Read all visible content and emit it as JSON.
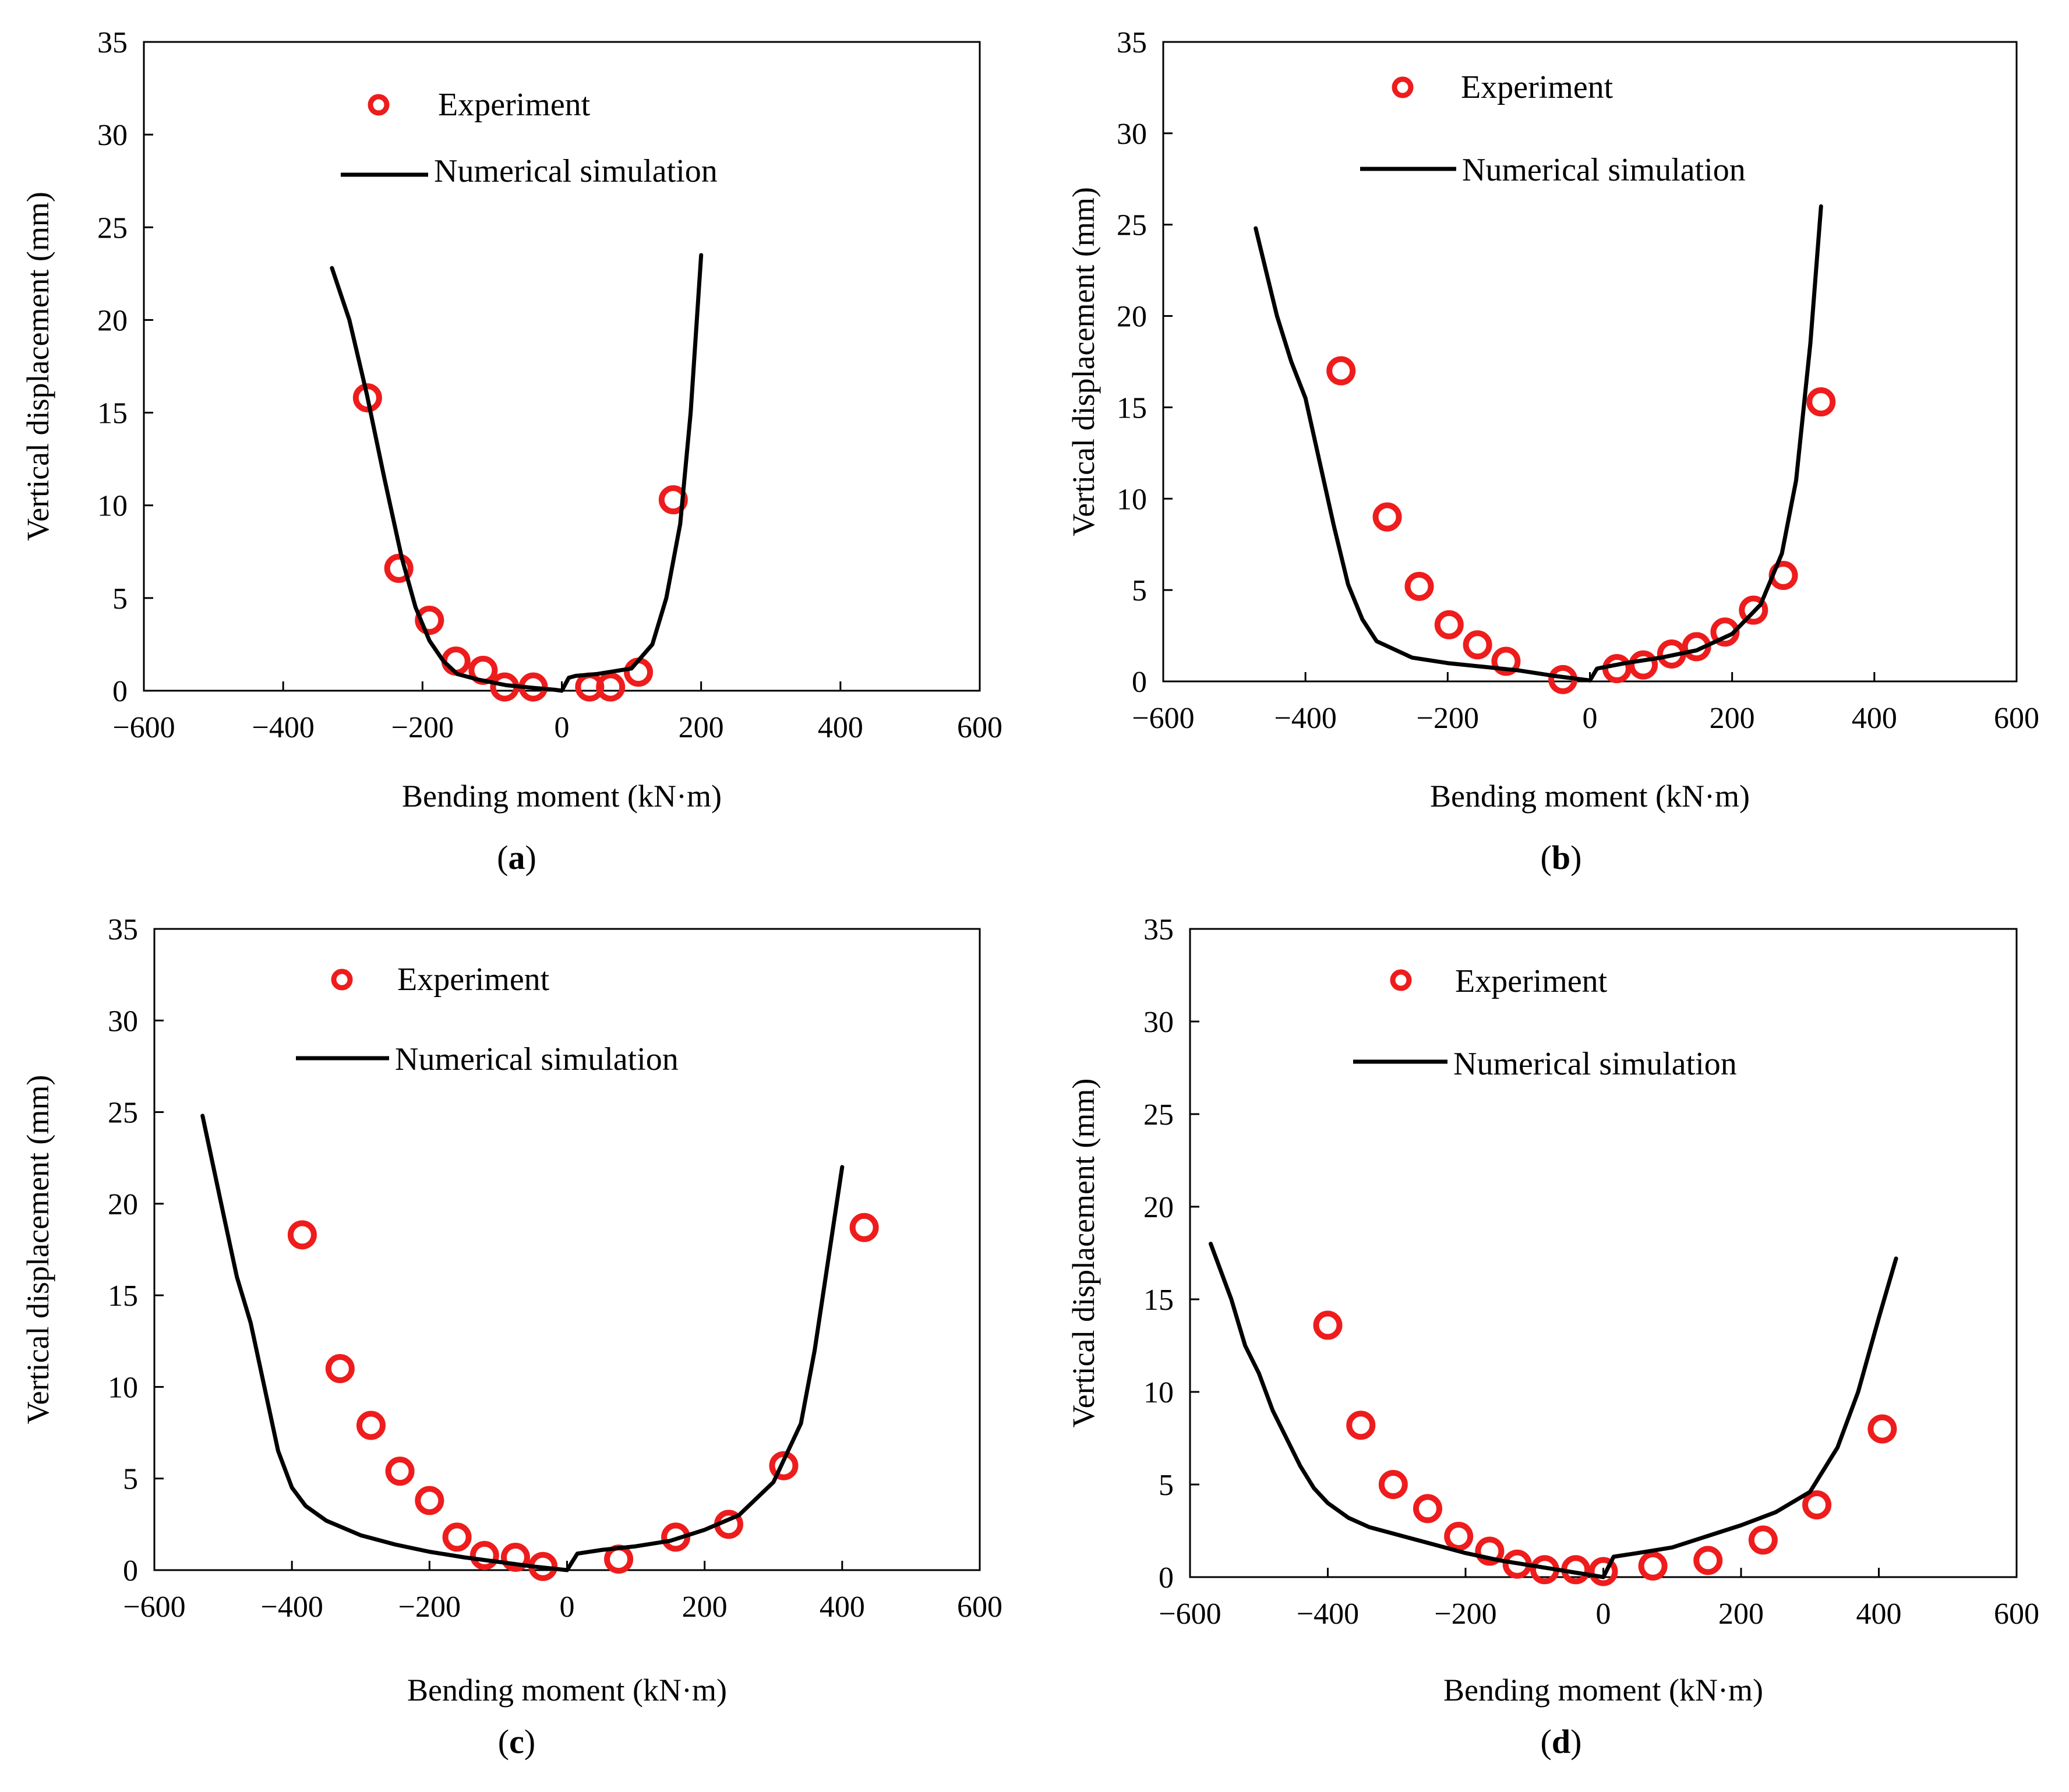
{
  "chart_data": [
    {
      "type": "scatter",
      "panel_label": "a",
      "xlabel": "Bending moment (kN·m)",
      "ylabel": "Vertical displacement (mm)",
      "xlim": [
        -600,
        600
      ],
      "ylim": [
        0,
        35
      ],
      "xticks": [
        -600,
        -400,
        -200,
        0,
        200,
        400,
        600
      ],
      "yticks": [
        0,
        5,
        10,
        15,
        20,
        25,
        30,
        35
      ],
      "tick_labels_x": [
        "−600",
        "−400",
        "−200",
        "0",
        "200",
        "400",
        "600"
      ],
      "tick_labels_y": [
        "0",
        "5",
        "10",
        "15",
        "20",
        "25",
        "30",
        "35"
      ],
      "grid": false,
      "legend_position": "top-center",
      "series": [
        {
          "name": "Experiment",
          "style": "markers",
          "color": "#ee1c1c",
          "x": [
            -279,
            -234,
            -190,
            -152,
            -113,
            -82,
            -41,
            40,
            70,
            110,
            160
          ],
          "y": [
            15.8,
            6.6,
            3.8,
            1.6,
            1.1,
            0.2,
            0.2,
            0.2,
            0.2,
            1.0,
            10.3
          ]
        },
        {
          "name": "Numerical simulation",
          "style": "line",
          "color": "#000000",
          "x": [
            -330,
            -305,
            -280,
            -255,
            -230,
            -210,
            -190,
            -170,
            -150,
            -120,
            -80,
            -40,
            -10,
            0,
            10,
            20,
            50,
            100,
            130,
            150,
            170,
            185,
            200
          ],
          "y": [
            22.8,
            20.0,
            16.0,
            11.5,
            7.2,
            4.5,
            2.7,
            1.6,
            0.9,
            0.6,
            0.3,
            0.15,
            0.05,
            0.0,
            0.7,
            0.8,
            0.9,
            1.2,
            2.5,
            5.0,
            9.0,
            15.0,
            23.5
          ]
        }
      ]
    },
    {
      "type": "scatter",
      "panel_label": "b",
      "xlabel": "Bending moment (kN·m)",
      "ylabel": "Vertical displacement (mm)",
      "xlim": [
        -600,
        600
      ],
      "ylim": [
        0,
        35
      ],
      "xticks": [
        -600,
        -400,
        -200,
        0,
        200,
        400,
        600
      ],
      "yticks": [
        0,
        5,
        10,
        15,
        20,
        25,
        30,
        35
      ],
      "tick_labels_x": [
        "−600",
        "−400",
        "−200",
        "0",
        "200",
        "400",
        "600"
      ],
      "tick_labels_y": [
        "0",
        "5",
        "10",
        "15",
        "20",
        "25",
        "30",
        "35"
      ],
      "grid": false,
      "legend_position": "top-center",
      "series": [
        {
          "name": "Experiment",
          "style": "markers",
          "color": "#ee1c1c",
          "x": [
            -350,
            -285,
            -240,
            -198,
            -158,
            -118,
            -38,
            38,
            75,
            115,
            150,
            190,
            230,
            272,
            325
          ],
          "y": [
            17.0,
            9.0,
            5.2,
            3.1,
            2.0,
            1.1,
            0.1,
            0.7,
            0.9,
            1.5,
            1.9,
            2.7,
            3.9,
            5.8,
            15.3
          ]
        },
        {
          "name": "Numerical simulation",
          "style": "line",
          "color": "#000000",
          "x": [
            -470,
            -440,
            -420,
            -400,
            -380,
            -360,
            -340,
            -320,
            -300,
            -250,
            -200,
            -150,
            -100,
            -50,
            0,
            10,
            50,
            100,
            150,
            200,
            240,
            270,
            290,
            310,
            325
          ],
          "y": [
            24.8,
            20.0,
            17.5,
            15.5,
            12.0,
            8.5,
            5.3,
            3.4,
            2.2,
            1.3,
            1.0,
            0.8,
            0.6,
            0.3,
            0.05,
            0.7,
            1.0,
            1.3,
            1.7,
            2.6,
            4.2,
            7.0,
            11.0,
            18.5,
            26.0
          ]
        }
      ]
    },
    {
      "type": "scatter",
      "panel_label": "c",
      "xlabel": "Bending moment (kN·m)",
      "ylabel": "Vertical displacement (mm)",
      "xlim": [
        -600,
        600
      ],
      "ylim": [
        0,
        35
      ],
      "xticks": [
        -600,
        -400,
        -200,
        0,
        200,
        400,
        600
      ],
      "yticks": [
        0,
        5,
        10,
        15,
        20,
        25,
        30,
        35
      ],
      "tick_labels_x": [
        "−600",
        "−400",
        "−200",
        "0",
        "200",
        "400",
        "600"
      ],
      "tick_labels_y": [
        "0",
        "5",
        "10",
        "15",
        "20",
        "25",
        "30",
        "35"
      ],
      "grid": false,
      "legend_position": "top-center",
      "series": [
        {
          "name": "Experiment",
          "style": "markers",
          "color": "#ee1c1c",
          "x": [
            -385,
            -330,
            -285,
            -243,
            -200,
            -160,
            -120,
            -75,
            -35,
            75,
            158,
            235,
            315,
            432
          ],
          "y": [
            18.3,
            11.0,
            7.9,
            5.4,
            3.8,
            1.8,
            0.8,
            0.7,
            0.2,
            0.6,
            1.8,
            2.5,
            5.7,
            18.7
          ]
        },
        {
          "name": "Numerical simulation",
          "style": "line",
          "color": "#000000",
          "x": [
            -530,
            -500,
            -480,
            -460,
            -440,
            -420,
            -400,
            -380,
            -350,
            -300,
            -250,
            -200,
            -150,
            -100,
            -50,
            0,
            15,
            50,
            100,
            150,
            200,
            250,
            300,
            340,
            360,
            380,
            400
          ],
          "y": [
            24.8,
            19.5,
            16.0,
            13.5,
            10.0,
            6.5,
            4.5,
            3.5,
            2.7,
            1.9,
            1.4,
            1.0,
            0.7,
            0.45,
            0.2,
            0.0,
            0.9,
            1.1,
            1.3,
            1.6,
            2.2,
            3.0,
            4.8,
            8.0,
            12.0,
            17.0,
            22.0
          ]
        }
      ]
    },
    {
      "type": "scatter",
      "panel_label": "d",
      "xlabel": "Bending moment (kN·m)",
      "ylabel": "Vertical displacement (mm)",
      "xlim": [
        -600,
        600
      ],
      "ylim": [
        0,
        35
      ],
      "xticks": [
        -600,
        -400,
        -200,
        0,
        200,
        400,
        600
      ],
      "yticks": [
        0,
        5,
        10,
        15,
        20,
        25,
        30,
        35
      ],
      "tick_labels_x": [
        "−600",
        "−400",
        "−200",
        "0",
        "200",
        "400",
        "600"
      ],
      "tick_labels_y": [
        "0",
        "5",
        "10",
        "15",
        "20",
        "25",
        "30",
        "35"
      ],
      "grid": false,
      "legend_position": "top-center",
      "series": [
        {
          "name": "Experiment",
          "style": "markers",
          "color": "#ee1c1c",
          "x": [
            -400,
            -352,
            -305,
            -255,
            -210,
            -165,
            -125,
            -85,
            -40,
            0,
            72,
            152,
            232,
            310,
            405
          ],
          "y": [
            13.6,
            8.2,
            5.0,
            3.7,
            2.2,
            1.4,
            0.7,
            0.4,
            0.4,
            0.3,
            0.6,
            0.9,
            2.0,
            3.9,
            8.0
          ]
        },
        {
          "name": "Numerical simulation",
          "style": "line",
          "color": "#000000",
          "x": [
            -570,
            -540,
            -520,
            -500,
            -480,
            -460,
            -440,
            -420,
            -400,
            -370,
            -340,
            -300,
            -250,
            -200,
            -150,
            -100,
            -50,
            0,
            15,
            50,
            100,
            150,
            200,
            250,
            300,
            340,
            370,
            400,
            425
          ],
          "y": [
            18.0,
            15.0,
            12.5,
            11.0,
            9.0,
            7.5,
            6.0,
            4.8,
            4.0,
            3.2,
            2.7,
            2.3,
            1.8,
            1.3,
            0.9,
            0.6,
            0.3,
            0.0,
            1.1,
            1.3,
            1.6,
            2.2,
            2.8,
            3.5,
            4.6,
            7.0,
            10.0,
            14.0,
            17.2
          ]
        }
      ]
    }
  ]
}
